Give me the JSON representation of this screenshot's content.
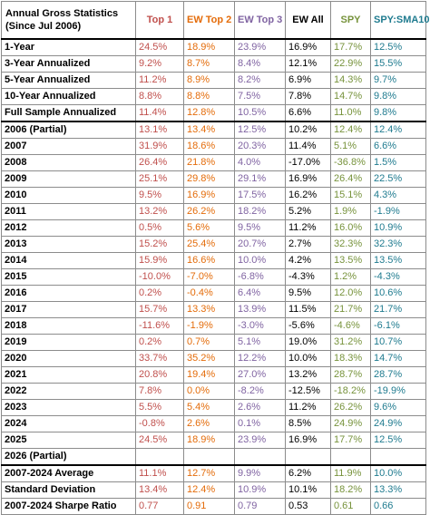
{
  "header": {
    "title_line1": "Annual Gross Statistics",
    "title_line2": "(Since Jul 2006)",
    "columns": [
      "Top 1",
      "EW Top 2",
      "EW Top 3",
      "EW All",
      "SPY",
      "SPY:SMA10"
    ]
  },
  "colors": {
    "top1": "#c0504d",
    "ew_top2": "#e46c0a",
    "ew_top3": "#8064a2",
    "ew_all": "#000000",
    "spy": "#77933c",
    "spy_sma10": "#1f7b8f"
  },
  "rows": [
    {
      "label": "1-Year",
      "values": [
        "24.5%",
        "18.9%",
        "23.9%",
        "16.9%",
        "17.7%",
        "12.5%"
      ]
    },
    {
      "label": "3-Year Annualized",
      "values": [
        "9.2%",
        "8.7%",
        "8.4%",
        "12.1%",
        "22.9%",
        "15.5%"
      ]
    },
    {
      "label": "5-Year Annualized",
      "values": [
        "11.2%",
        "8.9%",
        "8.2%",
        "6.9%",
        "14.3%",
        "9.7%"
      ]
    },
    {
      "label": "10-Year Annualized",
      "values": [
        "8.8%",
        "8.8%",
        "7.5%",
        "7.8%",
        "14.7%",
        "9.8%"
      ]
    },
    {
      "label": "Full Sample Annualized",
      "values": [
        "11.4%",
        "12.8%",
        "10.5%",
        "6.6%",
        "11.0%",
        "9.8%"
      ]
    },
    {
      "label": "2006 (Partial)",
      "values": [
        "13.1%",
        "13.4%",
        "12.5%",
        "10.2%",
        "12.4%",
        "12.4%"
      ]
    },
    {
      "label": "2007",
      "values": [
        "31.9%",
        "18.6%",
        "20.3%",
        "11.4%",
        "5.1%",
        "6.6%"
      ]
    },
    {
      "label": "2008",
      "values": [
        "26.4%",
        "21.8%",
        "4.0%",
        "-17.0%",
        "-36.8%",
        "1.5%"
      ]
    },
    {
      "label": "2009",
      "values": [
        "25.1%",
        "29.8%",
        "29.1%",
        "16.9%",
        "26.4%",
        "22.5%"
      ]
    },
    {
      "label": "2010",
      "values": [
        "9.5%",
        "16.9%",
        "17.5%",
        "16.2%",
        "15.1%",
        "4.3%"
      ]
    },
    {
      "label": "2011",
      "values": [
        "13.2%",
        "26.2%",
        "18.2%",
        "5.2%",
        "1.9%",
        "-1.9%"
      ]
    },
    {
      "label": "2012",
      "values": [
        "0.5%",
        "5.6%",
        "9.5%",
        "11.2%",
        "16.0%",
        "10.9%"
      ]
    },
    {
      "label": "2013",
      "values": [
        "15.2%",
        "25.4%",
        "20.7%",
        "2.7%",
        "32.3%",
        "32.3%"
      ]
    },
    {
      "label": "2014",
      "values": [
        "15.9%",
        "16.6%",
        "10.0%",
        "4.2%",
        "13.5%",
        "13.5%"
      ]
    },
    {
      "label": "2015",
      "values": [
        "-10.0%",
        "-7.0%",
        "-6.8%",
        "-4.3%",
        "1.2%",
        "-4.3%"
      ]
    },
    {
      "label": "2016",
      "values": [
        "0.2%",
        "-0.4%",
        "6.4%",
        "9.5%",
        "12.0%",
        "10.6%"
      ]
    },
    {
      "label": "2017",
      "values": [
        "15.7%",
        "13.3%",
        "13.9%",
        "11.5%",
        "21.7%",
        "21.7%"
      ]
    },
    {
      "label": "2018",
      "values": [
        "-11.6%",
        "-1.9%",
        "-3.0%",
        "-5.6%",
        "-4.6%",
        "-6.1%"
      ]
    },
    {
      "label": "2019",
      "values": [
        "0.2%",
        "0.7%",
        "5.1%",
        "19.0%",
        "31.2%",
        "10.7%"
      ]
    },
    {
      "label": "2020",
      "values": [
        "33.7%",
        "35.2%",
        "12.2%",
        "10.0%",
        "18.3%",
        "14.7%"
      ]
    },
    {
      "label": "2021",
      "values": [
        "20.8%",
        "19.4%",
        "27.0%",
        "13.2%",
        "28.7%",
        "28.7%"
      ]
    },
    {
      "label": "2022",
      "values": [
        "7.8%",
        "0.0%",
        "-8.2%",
        "-12.5%",
        "-18.2%",
        "-19.9%"
      ]
    },
    {
      "label": "2023",
      "values": [
        "5.5%",
        "5.4%",
        "2.6%",
        "11.2%",
        "26.2%",
        "9.6%"
      ]
    },
    {
      "label": "2024",
      "values": [
        "-0.8%",
        "2.6%",
        "0.1%",
        "8.5%",
        "24.9%",
        "24.9%"
      ]
    },
    {
      "label": "2025",
      "values": [
        "24.5%",
        "18.9%",
        "23.9%",
        "16.9%",
        "17.7%",
        "12.5%"
      ]
    },
    {
      "label": "2026 (Partial)",
      "values": [
        "",
        "",
        "",
        "",
        "",
        ""
      ]
    },
    {
      "label": "2007-2024 Average",
      "values": [
        "11.1%",
        "12.7%",
        "9.9%",
        "6.2%",
        "11.9%",
        "10.0%"
      ]
    },
    {
      "label": "Standard Deviation",
      "values": [
        "13.4%",
        "12.4%",
        "10.9%",
        "10.1%",
        "18.2%",
        "13.3%"
      ]
    },
    {
      "label": "2007-2024 Sharpe Ratio",
      "values": [
        "0.77",
        "0.91",
        "0.79",
        "0.53",
        "0.61",
        "0.66"
      ]
    }
  ]
}
